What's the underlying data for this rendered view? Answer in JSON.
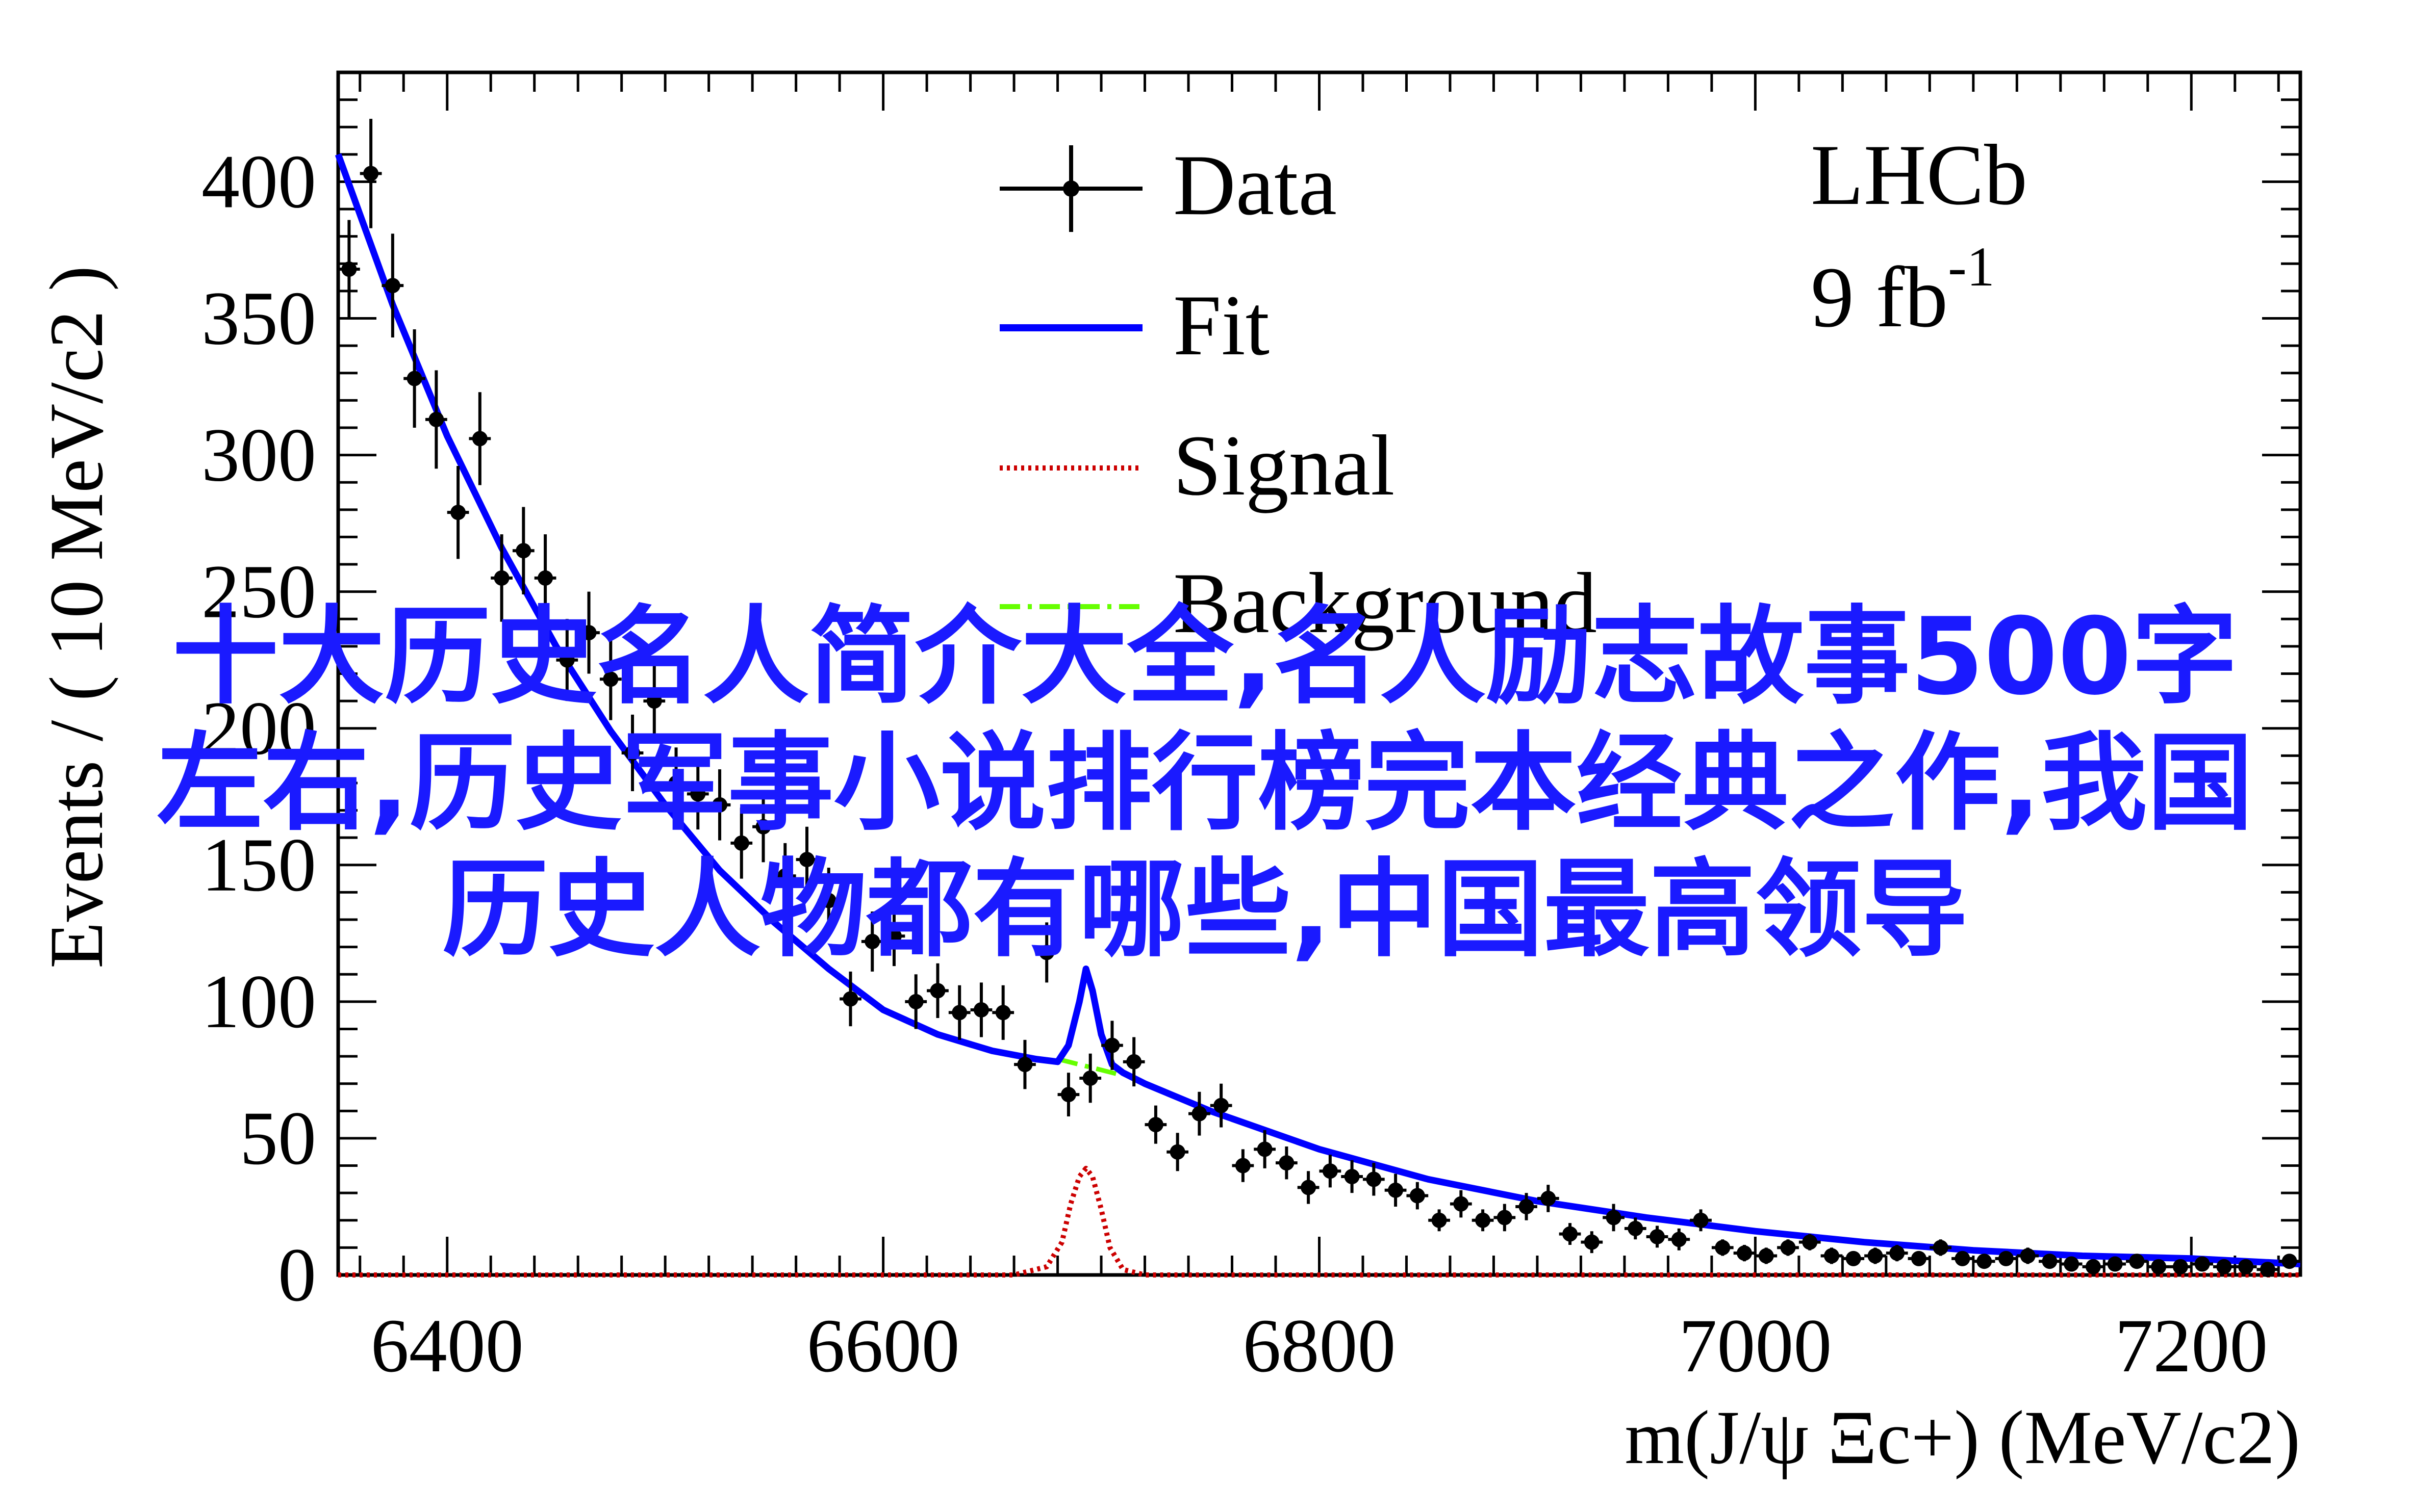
{
  "chart_data": {
    "type": "line",
    "experiment_label": "LHCb",
    "luminosity_label": "9 fb",
    "luminosity_exponent": "-1",
    "xlabel": "m(J/ψ Ξc+) (MeV/c2)",
    "ylabel": "Events / ( 10 MeV/c2 )",
    "xlim": [
      6350,
      7250
    ],
    "ylim": [
      0,
      440
    ],
    "xticks": [
      6400,
      6600,
      6800,
      7000,
      7200
    ],
    "yticks": [
      0,
      50,
      100,
      150,
      200,
      250,
      300,
      350,
      400
    ],
    "legend_position": "top-center",
    "legend": [
      {
        "label": "Data",
        "style": "points"
      },
      {
        "label": "Fit",
        "style": "solid",
        "color": "#0000ff"
      },
      {
        "label": "Signal",
        "style": "dotted",
        "color": "#cc0000"
      },
      {
        "label": "Background",
        "style": "dashdot",
        "color": "#66ff00"
      }
    ],
    "series": [
      {
        "name": "Data",
        "x": [
          6355,
          6365,
          6375,
          6385,
          6395,
          6405,
          6415,
          6425,
          6435,
          6445,
          6455,
          6465,
          6475,
          6485,
          6495,
          6505,
          6515,
          6525,
          6535,
          6545,
          6555,
          6565,
          6575,
          6585,
          6595,
          6605,
          6615,
          6625,
          6635,
          6645,
          6655,
          6665,
          6675,
          6685,
          6695,
          6705,
          6715,
          6725,
          6735,
          6745,
          6755,
          6765,
          6775,
          6785,
          6795,
          6805,
          6815,
          6825,
          6835,
          6845,
          6855,
          6865,
          6875,
          6885,
          6895,
          6905,
          6915,
          6925,
          6935,
          6945,
          6955,
          6965,
          6975,
          6985,
          6995,
          7005,
          7015,
          7025,
          7035,
          7045,
          7055,
          7065,
          7075,
          7085,
          7095,
          7105,
          7115,
          7125,
          7135,
          7145,
          7155,
          7165,
          7175,
          7185,
          7195,
          7205,
          7215,
          7225,
          7235,
          7245
        ],
        "y": [
          368,
          403,
          362,
          328,
          313,
          279,
          306,
          255,
          265,
          255,
          225,
          235,
          218,
          191,
          210,
          180,
          176,
          172,
          158,
          164,
          146,
          152,
          137,
          101,
          122,
          124,
          100,
          104,
          96,
          97,
          96,
          77,
          118,
          66,
          72,
          84,
          78,
          55,
          45,
          59,
          62,
          40,
          46,
          41,
          32,
          38,
          36,
          35,
          31,
          29,
          20,
          26,
          20,
          21,
          25,
          28,
          15,
          12,
          21,
          17,
          14,
          13,
          20,
          10,
          8,
          7,
          10,
          12,
          7,
          6,
          7,
          8,
          6,
          10,
          6,
          5,
          6,
          7,
          5,
          4,
          3,
          4,
          5,
          3,
          3,
          4,
          3,
          3,
          2,
          5
        ],
        "yerr": [
          18,
          20,
          19,
          18,
          18,
          17,
          17,
          16,
          16,
          16,
          15,
          15,
          15,
          14,
          14,
          13,
          13,
          13,
          13,
          13,
          12,
          12,
          12,
          10,
          11,
          11,
          10,
          10,
          10,
          10,
          10,
          9,
          11,
          8,
          9,
          9,
          9,
          7,
          7,
          8,
          8,
          6,
          7,
          6,
          6,
          6,
          6,
          6,
          6,
          5,
          4,
          5,
          4,
          5,
          5,
          5,
          4,
          4,
          5,
          4,
          4,
          4,
          4,
          3,
          3,
          3,
          3,
          3,
          3,
          2,
          3,
          3,
          2,
          3,
          2,
          2,
          2,
          3,
          2,
          2,
          2,
          2,
          2,
          2,
          2,
          2,
          2,
          2,
          1,
          2
        ]
      },
      {
        "name": "Fit",
        "x": [
          6350,
          6375,
          6400,
          6425,
          6450,
          6475,
          6500,
          6525,
          6550,
          6575,
          6600,
          6625,
          6650,
          6670,
          6680,
          6685,
          6690,
          6693,
          6696,
          6700,
          6705,
          6710,
          6720,
          6750,
          6800,
          6850,
          6900,
          6950,
          7000,
          7050,
          7100,
          7150,
          7200,
          7250
        ],
        "y": [
          410,
          355,
          307,
          266,
          230,
          199,
          172,
          148,
          129,
          112,
          97,
          88,
          82,
          79,
          78,
          84,
          100,
          112,
          104,
          88,
          77,
          74,
          70,
          60,
          46,
          35,
          27,
          21,
          16,
          12,
          9,
          7,
          6,
          4
        ]
      },
      {
        "name": "Signal",
        "x": [
          6350,
          6660,
          6675,
          6682,
          6686,
          6690,
          6693,
          6696,
          6700,
          6704,
          6710,
          6720,
          7250
        ],
        "y": [
          0,
          0,
          3,
          12,
          26,
          36,
          39,
          36,
          24,
          10,
          2,
          0,
          0
        ]
      },
      {
        "name": "Background",
        "x": [
          6680,
          6685,
          6690,
          6695,
          6700,
          6705,
          6710
        ],
        "y": [
          79,
          78,
          77,
          76,
          75,
          74,
          73
        ]
      }
    ]
  },
  "overlay": {
    "line1": "十大历史名人简介大全,名人励志故事500字",
    "line2": "左右,历史军事小说排行榜完本经典之作,我国",
    "line3": "历史人物都有哪些,中国最高领导"
  }
}
